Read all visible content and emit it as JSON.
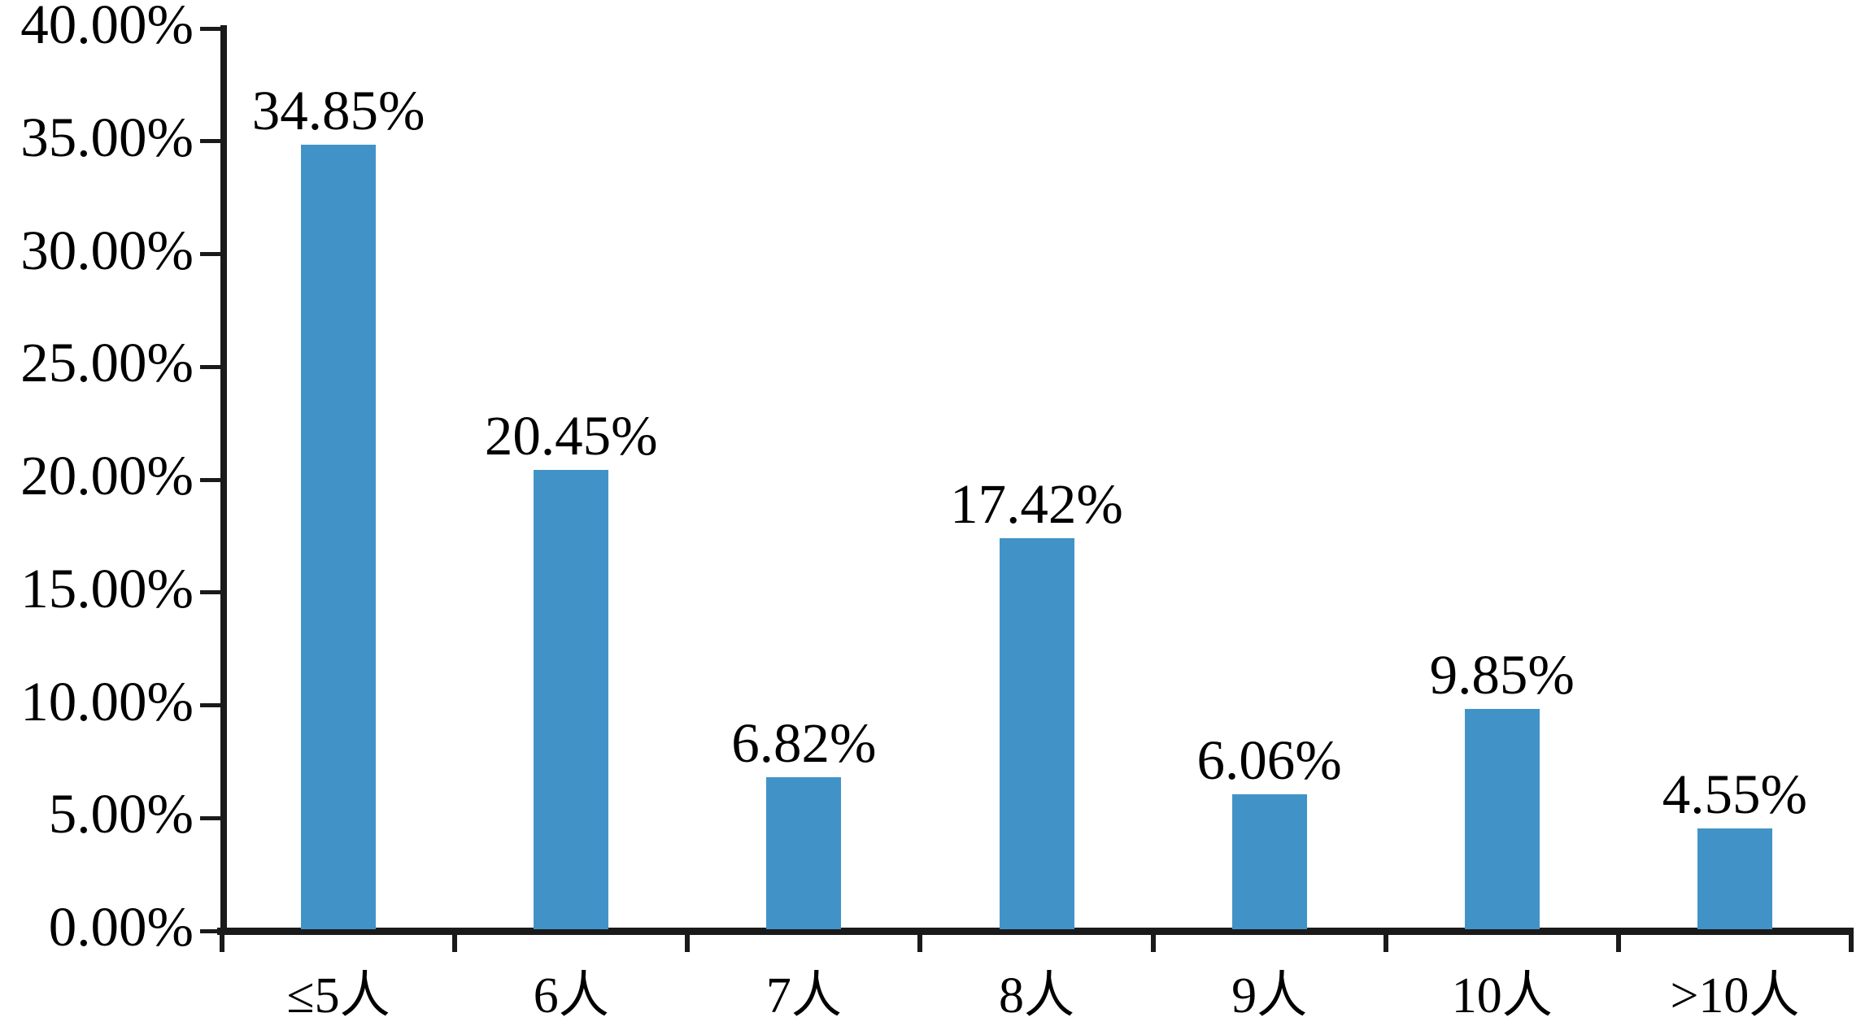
{
  "chart_data": {
    "type": "bar",
    "title": "",
    "xlabel": "",
    "ylabel": "",
    "categories": [
      "≤5人",
      "6人",
      "7人",
      "8人",
      "9人",
      "10人",
      ">10人"
    ],
    "values": [
      34.85,
      20.45,
      6.82,
      17.42,
      6.06,
      9.85,
      4.55
    ],
    "value_labels": [
      "34.85%",
      "20.45%",
      "6.82%",
      "17.42%",
      "6.06%",
      "9.85%",
      "4.55%"
    ],
    "ylim": [
      0,
      40
    ],
    "y_tick_values": [
      0,
      5,
      10,
      15,
      20,
      25,
      30,
      35,
      40
    ],
    "y_tick_labels": [
      "0.00%",
      "5.00%",
      "10.00%",
      "15.00%",
      "20.00%",
      "25.00%",
      "30.00%",
      "35.00%",
      "40.00%"
    ],
    "bar_color": "#4193C7",
    "axis_color": "#1a1a1a",
    "text_color": "#000000",
    "grid": "off",
    "legend": "none",
    "tick_style": "outside, category boundaries on x-axis"
  }
}
